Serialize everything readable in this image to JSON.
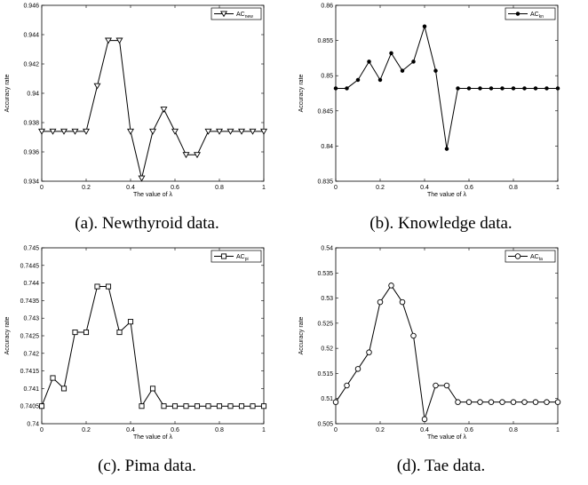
{
  "chart_data": [
    {
      "type": "line",
      "caption": "(a). Newthyroid data.",
      "xlabel": "The value of λ",
      "ylabel": "Accuracy rate",
      "xlim": [
        0,
        1
      ],
      "ylim": [
        0.934,
        0.946
      ],
      "x_ticks": [
        "0",
        "0.2",
        "0.4",
        "0.6",
        "0.8",
        "1"
      ],
      "y_ticks": [
        "0.934",
        "0.936",
        "0.938",
        "0.94",
        "0.942",
        "0.944",
        "0.946"
      ],
      "legend_position": "top-right",
      "marker": "triangle-down",
      "series": [
        {
          "name": "AC",
          "name_sub": "new",
          "x": [
            0,
            0.05,
            0.1,
            0.15,
            0.2,
            0.25,
            0.3,
            0.35,
            0.4,
            0.45,
            0.5,
            0.55,
            0.6,
            0.65,
            0.7,
            0.75,
            0.8,
            0.85,
            0.9,
            0.95,
            1
          ],
          "values": [
            0.9374,
            0.9374,
            0.9374,
            0.9374,
            0.9374,
            0.9405,
            0.9436,
            0.9436,
            0.9374,
            0.9342,
            0.9374,
            0.9389,
            0.9374,
            0.9358,
            0.9358,
            0.9374,
            0.9374,
            0.9374,
            0.9374,
            0.9374,
            0.9374
          ]
        }
      ]
    },
    {
      "type": "line",
      "caption": "(b). Knowledge data.",
      "xlabel": "The value of λ",
      "ylabel": "Accuracy rate",
      "xlim": [
        0,
        1
      ],
      "ylim": [
        0.835,
        0.86
      ],
      "x_ticks": [
        "0",
        "0.2",
        "0.4",
        "0.6",
        "0.8",
        "1"
      ],
      "y_ticks": [
        "0.835",
        "0.84",
        "0.845",
        "0.85",
        "0.855",
        "0.86"
      ],
      "legend_position": "top-right",
      "marker": "dot",
      "series": [
        {
          "name": "AC",
          "name_sub": "kn",
          "x": [
            0,
            0.05,
            0.1,
            0.15,
            0.2,
            0.25,
            0.3,
            0.35,
            0.4,
            0.45,
            0.5,
            0.55,
            0.6,
            0.65,
            0.7,
            0.75,
            0.8,
            0.85,
            0.9,
            0.95,
            1
          ],
          "values": [
            0.8482,
            0.8482,
            0.8494,
            0.852,
            0.8494,
            0.8532,
            0.8507,
            0.852,
            0.857,
            0.8507,
            0.8396,
            0.8482,
            0.8482,
            0.8482,
            0.8482,
            0.8482,
            0.8482,
            0.8482,
            0.8482,
            0.8482,
            0.8482
          ]
        }
      ]
    },
    {
      "type": "line",
      "caption": "(c). Pima data.",
      "xlabel": "The value of λ",
      "ylabel": "Accuracy rate",
      "xlim": [
        0,
        1
      ],
      "ylim": [
        0.74,
        0.745
      ],
      "x_ticks": [
        "0",
        "0.2",
        "0.4",
        "0.6",
        "0.8",
        "1"
      ],
      "y_ticks": [
        "0.74",
        "0.7405",
        "0.741",
        "0.7415",
        "0.742",
        "0.7425",
        "0.743",
        "0.7435",
        "0.744",
        "0.7445",
        "0.745"
      ],
      "legend_position": "top-right",
      "marker": "square",
      "series": [
        {
          "name": "AC",
          "name_sub": "pi",
          "x": [
            0,
            0.05,
            0.1,
            0.15,
            0.2,
            0.25,
            0.3,
            0.35,
            0.4,
            0.45,
            0.5,
            0.55,
            0.6,
            0.65,
            0.7,
            0.75,
            0.8,
            0.85,
            0.9,
            0.95,
            1
          ],
          "values": [
            0.7405,
            0.7413,
            0.741,
            0.7426,
            0.7426,
            0.7439,
            0.7439,
            0.7426,
            0.7429,
            0.7405,
            0.741,
            0.7405,
            0.7405,
            0.7405,
            0.7405,
            0.7405,
            0.7405,
            0.7405,
            0.7405,
            0.7405,
            0.7405
          ]
        }
      ]
    },
    {
      "type": "line",
      "caption": "(d). Tae data.",
      "xlabel": "The value of λ",
      "ylabel": "Accuracy rate",
      "xlim": [
        0,
        1
      ],
      "ylim": [
        0.505,
        0.54
      ],
      "x_ticks": [
        "0",
        "0.2",
        "0.4",
        "0.6",
        "0.8",
        "1"
      ],
      "y_ticks": [
        "0.505",
        "0.51",
        "0.515",
        "0.52",
        "0.525",
        "0.53",
        "0.535",
        "0.54"
      ],
      "legend_position": "top-right",
      "marker": "circle",
      "series": [
        {
          "name": "AC",
          "name_sub": "ta",
          "x": [
            0,
            0.05,
            0.1,
            0.15,
            0.2,
            0.25,
            0.3,
            0.35,
            0.4,
            0.45,
            0.5,
            0.55,
            0.6,
            0.65,
            0.7,
            0.75,
            0.8,
            0.85,
            0.9,
            0.95,
            1
          ],
          "values": [
            0.5093,
            0.5126,
            0.5159,
            0.5192,
            0.5292,
            0.5325,
            0.5292,
            0.5225,
            0.5059,
            0.5126,
            0.5126,
            0.5093,
            0.5093,
            0.5093,
            0.5093,
            0.5093,
            0.5093,
            0.5093,
            0.5093,
            0.5093,
            0.5093
          ]
        }
      ]
    }
  ]
}
